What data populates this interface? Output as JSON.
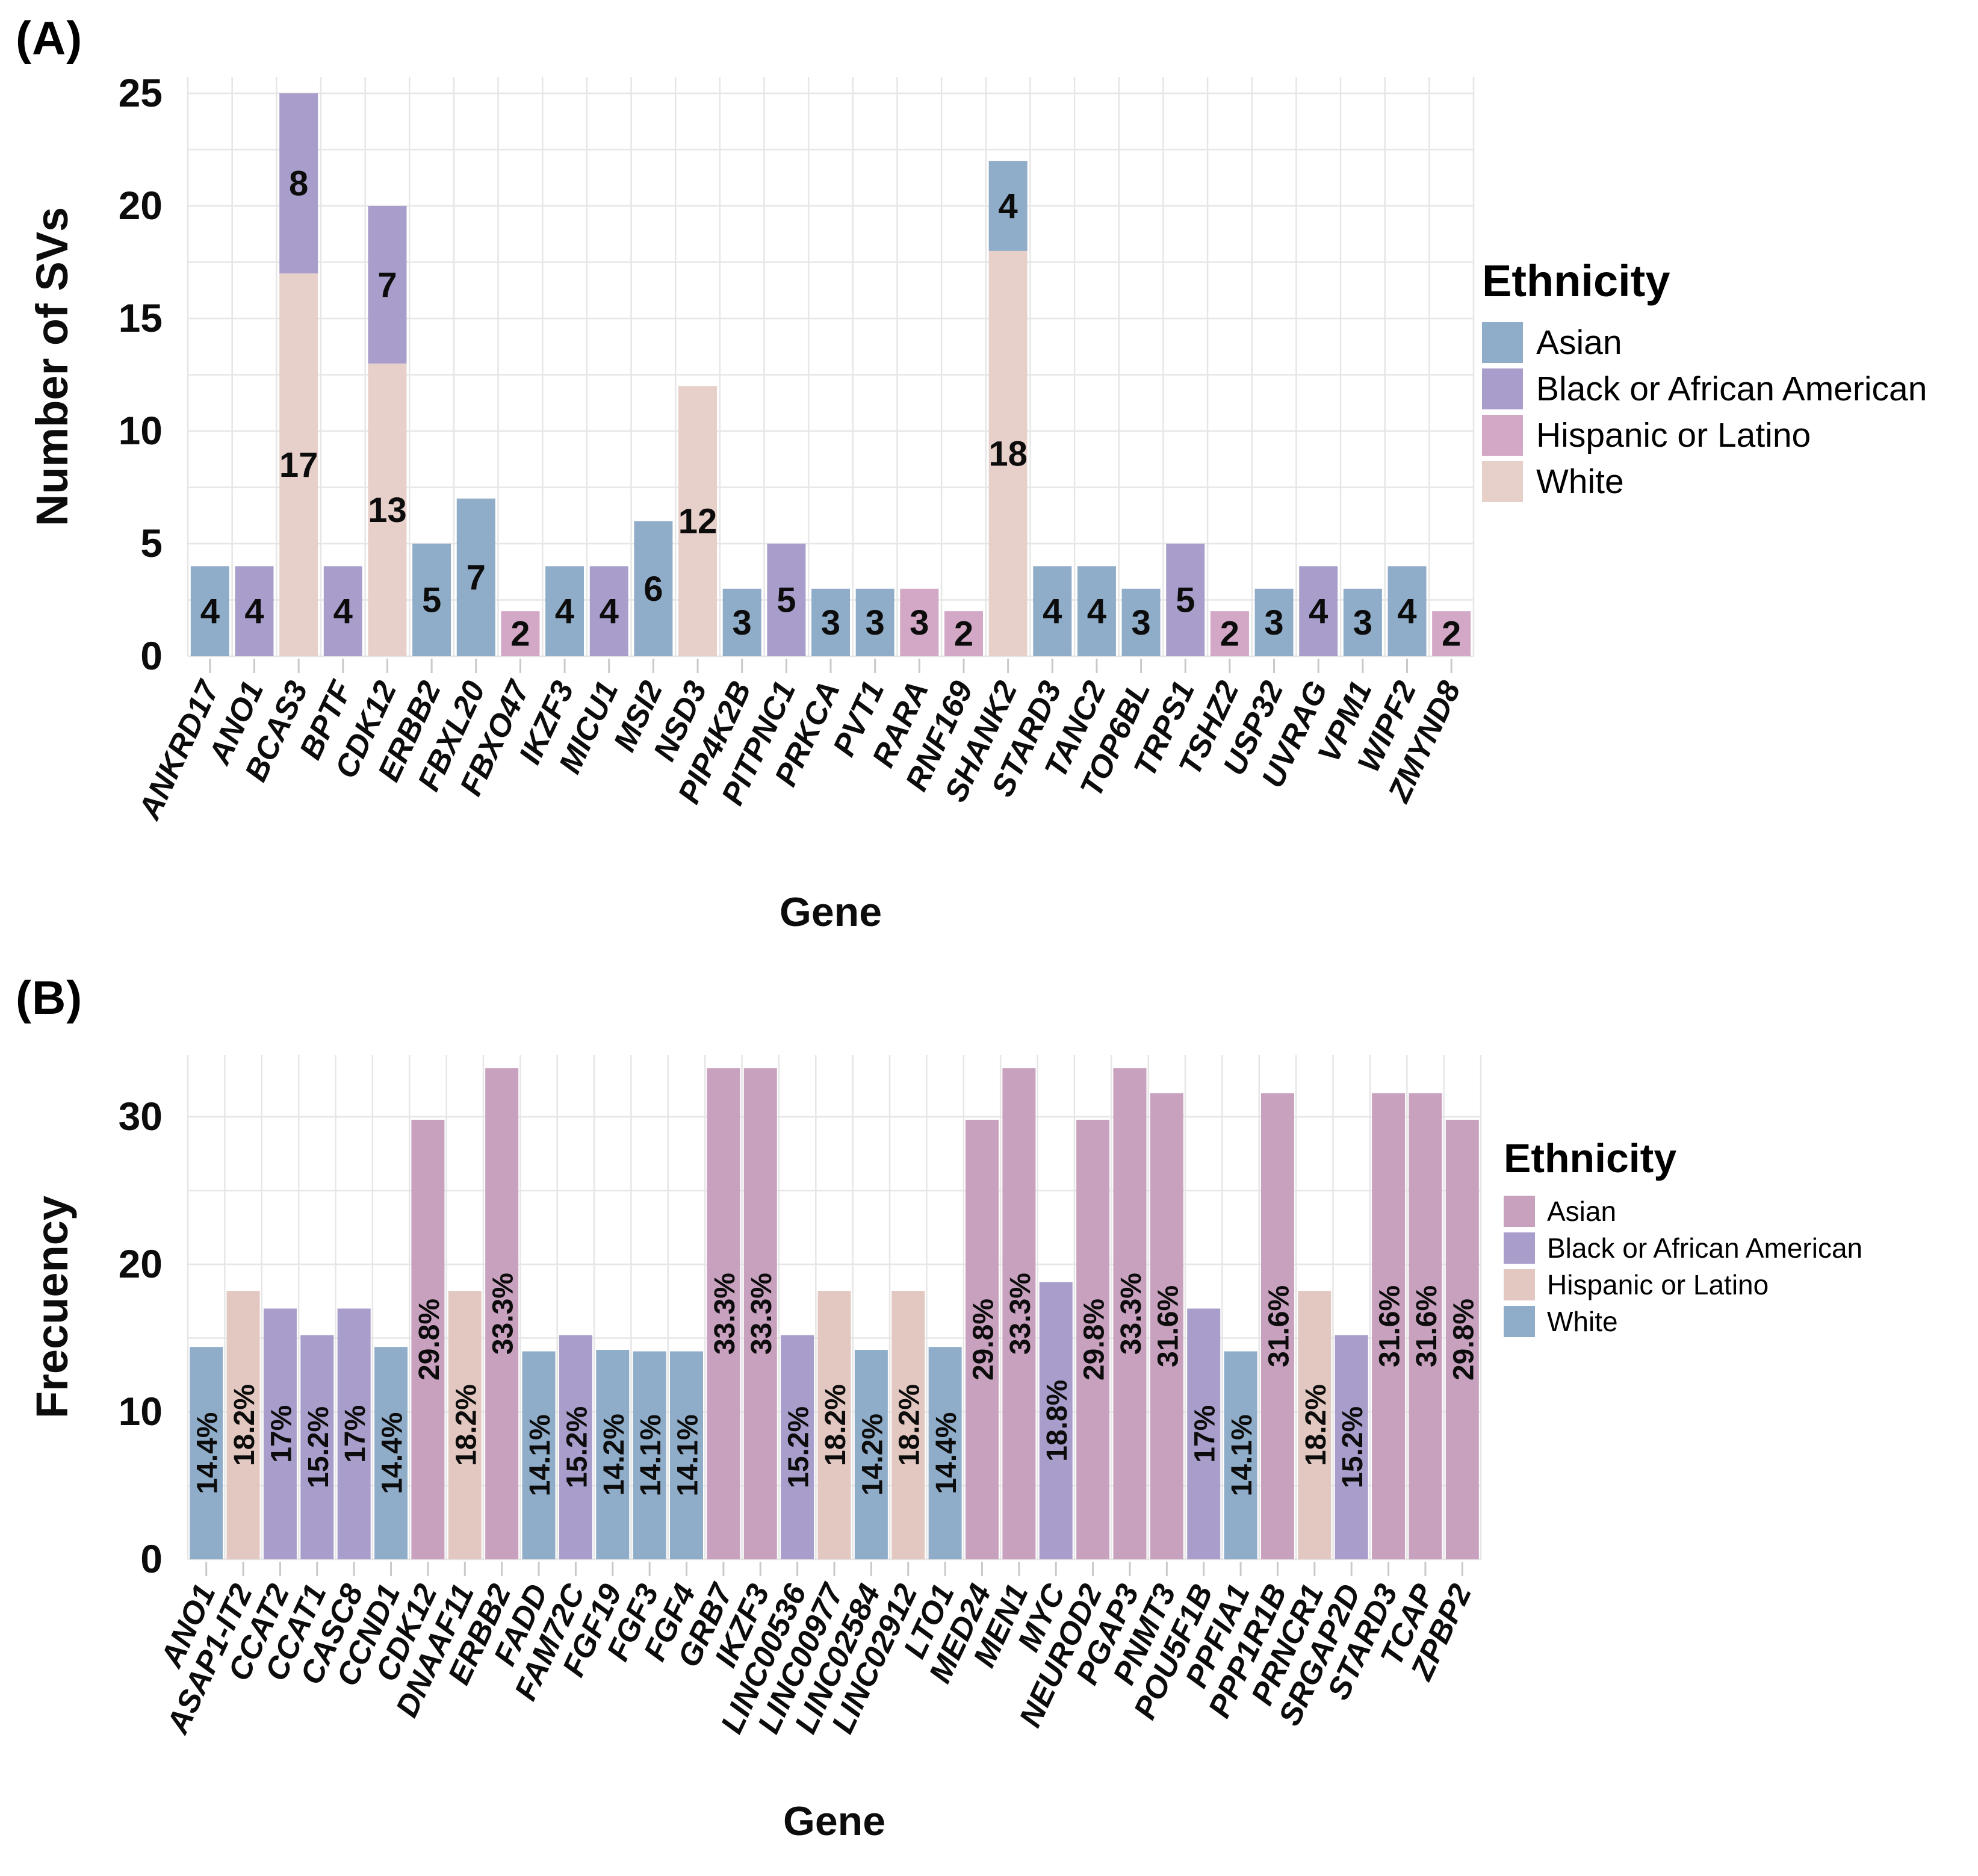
{
  "figure": {
    "background": "#ffffff",
    "gridline_color": "#e6e6e6",
    "tick_color": "#c9c9c9",
    "text_color": "#0c0c0c"
  },
  "chart_data": [
    {
      "id": "A",
      "tag": "(A)",
      "type": "bar",
      "stacked": true,
      "xlabel": "Gene",
      "ylabel": "Number of SVs",
      "ylim": [
        0,
        25
      ],
      "yticks": [
        0,
        5,
        10,
        15,
        20,
        25
      ],
      "grid": {
        "h_minor_step": 2.5,
        "vertical_per_category": true,
        "on": true
      },
      "legend": {
        "title": "Ethnicity",
        "position": "right",
        "items": [
          {
            "label": "Asian",
            "color": "#8fadc9"
          },
          {
            "label": "Black or African American",
            "color": "#a99ecb"
          },
          {
            "label": "Hispanic or Latino",
            "color": "#d2a8c6"
          },
          {
            "label": "White",
            "color": "#e7cfca"
          }
        ]
      },
      "bars": [
        {
          "gene": "ANKRD17",
          "segments": [
            {
              "group": "Asian",
              "value": 4,
              "label": "4"
            }
          ]
        },
        {
          "gene": "ANO1",
          "segments": [
            {
              "group": "Black or African American",
              "value": 4,
              "label": "4"
            }
          ]
        },
        {
          "gene": "BCAS3",
          "segments": [
            {
              "group": "White",
              "value": 17,
              "label": "17"
            },
            {
              "group": "Black or African American",
              "value": 8,
              "label": "8"
            }
          ]
        },
        {
          "gene": "BPTF",
          "segments": [
            {
              "group": "Black or African American",
              "value": 4,
              "label": "4"
            }
          ]
        },
        {
          "gene": "CDK12",
          "segments": [
            {
              "group": "White",
              "value": 13,
              "label": "13"
            },
            {
              "group": "Black or African American",
              "value": 7,
              "label": "7"
            }
          ]
        },
        {
          "gene": "ERBB2",
          "segments": [
            {
              "group": "Asian",
              "value": 5,
              "label": "5"
            }
          ]
        },
        {
          "gene": "FBXL20",
          "segments": [
            {
              "group": "Asian",
              "value": 7,
              "label": "7"
            }
          ]
        },
        {
          "gene": "FBXO47",
          "segments": [
            {
              "group": "Hispanic or Latino",
              "value": 2,
              "label": "2"
            }
          ]
        },
        {
          "gene": "IKZF3",
          "segments": [
            {
              "group": "Asian",
              "value": 4,
              "label": "4"
            }
          ]
        },
        {
          "gene": "MICU1",
          "segments": [
            {
              "group": "Black or African American",
              "value": 4,
              "label": "4"
            }
          ]
        },
        {
          "gene": "MSI2",
          "segments": [
            {
              "group": "Asian",
              "value": 6,
              "label": "6"
            }
          ]
        },
        {
          "gene": "NSD3",
          "segments": [
            {
              "group": "White",
              "value": 12,
              "label": "12"
            }
          ]
        },
        {
          "gene": "PIP4K2B",
          "segments": [
            {
              "group": "Asian",
              "value": 3,
              "label": "3"
            }
          ]
        },
        {
          "gene": "PITPNC1",
          "segments": [
            {
              "group": "Black or African American",
              "value": 5,
              "label": "5"
            }
          ]
        },
        {
          "gene": "PRKCA",
          "segments": [
            {
              "group": "Asian",
              "value": 3,
              "label": "3"
            }
          ]
        },
        {
          "gene": "PVT1",
          "segments": [
            {
              "group": "Asian",
              "value": 3,
              "label": "3"
            }
          ]
        },
        {
          "gene": "RARA",
          "segments": [
            {
              "group": "Hispanic or Latino",
              "value": 3,
              "label": "3"
            }
          ]
        },
        {
          "gene": "RNF169",
          "segments": [
            {
              "group": "Hispanic or Latino",
              "value": 2,
              "label": "2"
            }
          ]
        },
        {
          "gene": "SHANK2",
          "segments": [
            {
              "group": "White",
              "value": 18,
              "label": "18"
            },
            {
              "group": "Asian",
              "value": 4,
              "label": "4"
            }
          ]
        },
        {
          "gene": "STARD3",
          "segments": [
            {
              "group": "Asian",
              "value": 4,
              "label": "4"
            }
          ]
        },
        {
          "gene": "TANC2",
          "segments": [
            {
              "group": "Asian",
              "value": 4,
              "label": "4"
            }
          ]
        },
        {
          "gene": "TOP6BL",
          "segments": [
            {
              "group": "Asian",
              "value": 3,
              "label": "3"
            }
          ]
        },
        {
          "gene": "TRPS1",
          "segments": [
            {
              "group": "Black or African American",
              "value": 5,
              "label": "5"
            }
          ]
        },
        {
          "gene": "TSHZ2",
          "segments": [
            {
              "group": "Hispanic or Latino",
              "value": 2,
              "label": "2"
            }
          ]
        },
        {
          "gene": "USP32",
          "segments": [
            {
              "group": "Asian",
              "value": 3,
              "label": "3"
            }
          ]
        },
        {
          "gene": "UVRAG",
          "segments": [
            {
              "group": "Black or African American",
              "value": 4,
              "label": "4"
            }
          ]
        },
        {
          "gene": "VPM1",
          "segments": [
            {
              "group": "Asian",
              "value": 3,
              "label": "3"
            }
          ]
        },
        {
          "gene": "WIPF2",
          "segments": [
            {
              "group": "Asian",
              "value": 4,
              "label": "4"
            }
          ]
        },
        {
          "gene": "ZMYND8",
          "segments": [
            {
              "group": "Hispanic or Latino",
              "value": 2,
              "label": "2"
            }
          ]
        }
      ]
    },
    {
      "id": "B",
      "tag": "(B)",
      "type": "bar",
      "stacked": false,
      "xlabel": "Gene",
      "ylabel": "Frecuency",
      "ylim": [
        0,
        34
      ],
      "yticks": [
        0,
        10,
        20,
        30
      ],
      "grid": {
        "h_minor_step": 5,
        "vertical_per_category": true,
        "on": true
      },
      "legend": {
        "title": "Ethnicity",
        "position": "right",
        "items": [
          {
            "label": "Asian",
            "color": "#c8a1bf"
          },
          {
            "label": "Black or African American",
            "color": "#a99ecb"
          },
          {
            "label": "Hispanic or Latino",
            "color": "#e2c8c0"
          },
          {
            "label": "White",
            "color": "#8fadc9"
          }
        ]
      },
      "bars": [
        {
          "gene": "ANO1",
          "segments": [
            {
              "group": "White",
              "value": 14.4,
              "label": "14.4%"
            }
          ]
        },
        {
          "gene": "ASAP1-IT2",
          "segments": [
            {
              "group": "Hispanic or Latino",
              "value": 18.2,
              "label": "18.2%"
            }
          ]
        },
        {
          "gene": "CCAT2",
          "segments": [
            {
              "group": "Black or African American",
              "value": 17,
              "label": "17%"
            }
          ]
        },
        {
          "gene": "CCAT1",
          "segments": [
            {
              "group": "Black or African American",
              "value": 15.2,
              "label": "15.2%"
            }
          ]
        },
        {
          "gene": "CASC8",
          "segments": [
            {
              "group": "Black or African American",
              "value": 17,
              "label": "17%"
            }
          ]
        },
        {
          "gene": "CCND1",
          "segments": [
            {
              "group": "White",
              "value": 14.4,
              "label": "14.4%"
            }
          ]
        },
        {
          "gene": "CDK12",
          "segments": [
            {
              "group": "Asian",
              "value": 29.8,
              "label": "29.8%"
            }
          ]
        },
        {
          "gene": "DNAAF11",
          "segments": [
            {
              "group": "Hispanic or Latino",
              "value": 18.2,
              "label": "18.2%"
            }
          ]
        },
        {
          "gene": "ERBB2",
          "segments": [
            {
              "group": "Asian",
              "value": 33.3,
              "label": "33.3%"
            }
          ]
        },
        {
          "gene": "FADD",
          "segments": [
            {
              "group": "White",
              "value": 14.1,
              "label": "14.1%"
            }
          ]
        },
        {
          "gene": "FAM72C",
          "segments": [
            {
              "group": "Black or African American",
              "value": 15.2,
              "label": "15.2%"
            }
          ]
        },
        {
          "gene": "FGF19",
          "segments": [
            {
              "group": "White",
              "value": 14.2,
              "label": "14.2%"
            }
          ]
        },
        {
          "gene": "FGF3",
          "segments": [
            {
              "group": "White",
              "value": 14.1,
              "label": "14.1%"
            }
          ]
        },
        {
          "gene": "FGF4",
          "segments": [
            {
              "group": "White",
              "value": 14.1,
              "label": "14.1%"
            }
          ]
        },
        {
          "gene": "GRB7",
          "segments": [
            {
              "group": "Asian",
              "value": 33.3,
              "label": "33.3%"
            }
          ]
        },
        {
          "gene": "IKZF3",
          "segments": [
            {
              "group": "Asian",
              "value": 33.3,
              "label": "33.3%"
            }
          ]
        },
        {
          "gene": "LINC00536",
          "segments": [
            {
              "group": "Black or African American",
              "value": 15.2,
              "label": "15.2%"
            }
          ]
        },
        {
          "gene": "LINC00977",
          "segments": [
            {
              "group": "Hispanic or Latino",
              "value": 18.2,
              "label": "18.2%"
            }
          ]
        },
        {
          "gene": "LINC02584",
          "segments": [
            {
              "group": "White",
              "value": 14.2,
              "label": "14.2%"
            }
          ]
        },
        {
          "gene": "LINC02912",
          "segments": [
            {
              "group": "Hispanic or Latino",
              "value": 18.2,
              "label": "18.2%"
            }
          ]
        },
        {
          "gene": "LTO1",
          "segments": [
            {
              "group": "White",
              "value": 14.4,
              "label": "14.4%"
            }
          ]
        },
        {
          "gene": "MED24",
          "segments": [
            {
              "group": "Asian",
              "value": 29.8,
              "label": "29.8%"
            }
          ]
        },
        {
          "gene": "MEN1",
          "segments": [
            {
              "group": "Asian",
              "value": 33.3,
              "label": "33.3%"
            }
          ]
        },
        {
          "gene": "MYC",
          "segments": [
            {
              "group": "Black or African American",
              "value": 18.8,
              "label": "18.8%"
            }
          ]
        },
        {
          "gene": "NEUROD2",
          "segments": [
            {
              "group": "Asian",
              "value": 29.8,
              "label": "29.8%"
            }
          ]
        },
        {
          "gene": "PGAP3",
          "segments": [
            {
              "group": "Asian",
              "value": 33.3,
              "label": "33.3%"
            }
          ]
        },
        {
          "gene": "PNMT3",
          "segments": [
            {
              "group": "Asian",
              "value": 31.6,
              "label": "31.6%"
            }
          ]
        },
        {
          "gene": "POU5F1B",
          "segments": [
            {
              "group": "Black or African American",
              "value": 17,
              "label": "17%"
            }
          ]
        },
        {
          "gene": "PPFIA1",
          "segments": [
            {
              "group": "White",
              "value": 14.1,
              "label": "14.1%"
            }
          ]
        },
        {
          "gene": "PPP1R1B",
          "segments": [
            {
              "group": "Asian",
              "value": 31.6,
              "label": "31.6%"
            }
          ]
        },
        {
          "gene": "PRNCR1",
          "segments": [
            {
              "group": "Hispanic or Latino",
              "value": 18.2,
              "label": "18.2%"
            }
          ]
        },
        {
          "gene": "SRGAP2D",
          "segments": [
            {
              "group": "Black or African American",
              "value": 15.2,
              "label": "15.2%"
            }
          ]
        },
        {
          "gene": "STARD3",
          "segments": [
            {
              "group": "Asian",
              "value": 31.6,
              "label": "31.6%"
            }
          ]
        },
        {
          "gene": "TCAP",
          "segments": [
            {
              "group": "Asian",
              "value": 31.6,
              "label": "31.6%"
            }
          ]
        },
        {
          "gene": "ZPBP2",
          "segments": [
            {
              "group": "Asian",
              "value": 29.8,
              "label": "29.8%"
            }
          ]
        }
      ]
    }
  ]
}
